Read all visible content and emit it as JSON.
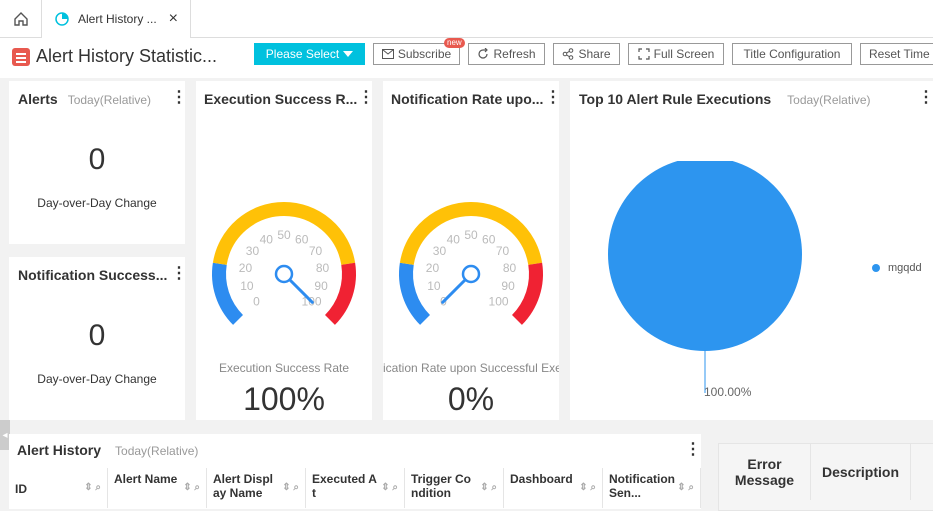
{
  "tabs": {
    "home_icon": "home-icon",
    "active_tab_icon": "dashboard-icon",
    "active_tab_label": "Alert History ...",
    "close_icon": "close-icon"
  },
  "toolbar": {
    "page_title": "Alert History Statistic...",
    "select_label": "Please Select",
    "subscribe_label": "Subscribe",
    "new_badge": "new",
    "refresh_label": "Refresh",
    "share_label": "Share",
    "fullscreen_label": "Full Screen",
    "title_config_label": "Title Configuration",
    "reset_time_label": "Reset Time"
  },
  "alerts_card": {
    "title": "Alerts",
    "subtitle": "Today(Relative)",
    "value": "0",
    "caption": "Day-over-Day Change"
  },
  "notif_card": {
    "title": "Notification Success...",
    "value": "0",
    "caption": "Day-over-Day Change"
  },
  "exec_gauge": {
    "title": "Execution Success R...",
    "ticks": [
      "0",
      "10",
      "20",
      "30",
      "40",
      "50",
      "60",
      "70",
      "80",
      "90",
      "100"
    ],
    "label": "Execution Success Rate",
    "value_text": "100%",
    "value": 100
  },
  "notif_gauge": {
    "title": "Notification Rate upo...",
    "ticks": [
      "0",
      "10",
      "20",
      "30",
      "40",
      "50",
      "60",
      "70",
      "80",
      "90",
      "100"
    ],
    "label": "ication Rate upon Successful Exe",
    "value_text": "0%",
    "value": 0
  },
  "top10": {
    "title": "Top 10 Alert Rule Executions",
    "subtitle": "Today(Relative)",
    "slice_label": "100.00%",
    "legend": "mgqdd",
    "color": "#2d95ef"
  },
  "history": {
    "title": "Alert History",
    "subtitle": "Today(Relative)",
    "columns": [
      "ID",
      "Alert Name",
      "Alert Display Name",
      "Executed At",
      "Trigger Condition",
      "Dashboard",
      "Notification Sen..."
    ]
  },
  "right_table": {
    "columns": [
      "Error Message",
      "Description"
    ]
  },
  "colors": {
    "accent": "#00c1de",
    "gauge_blue": "#2d8cf0",
    "gauge_yellow": "#ffc107",
    "gauge_red": "#f02233",
    "pie_blue": "#2d95ef"
  }
}
